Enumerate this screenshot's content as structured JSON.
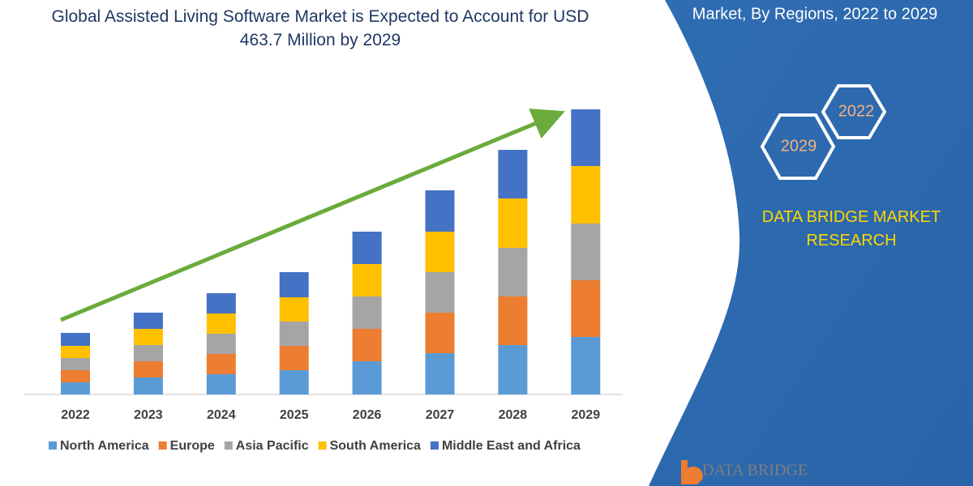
{
  "chart_data": {
    "type": "stacked-bar",
    "title": "Global Assisted Living Software Market is Expected to Account for USD 463.7 Million by 2029",
    "categories": [
      "2022",
      "2023",
      "2024",
      "2025",
      "2026",
      "2027",
      "2028",
      "2029"
    ],
    "series": [
      {
        "name": "North America",
        "color": "#5b9bd5",
        "values": [
          15,
          21,
          25,
          30,
          41,
          51,
          61,
          71
        ]
      },
      {
        "name": "Europe",
        "color": "#ed7d31",
        "values": [
          15,
          20,
          25,
          30,
          40,
          50,
          60,
          70
        ]
      },
      {
        "name": "Asia Pacific",
        "color": "#a5a5a5",
        "values": [
          15,
          20,
          25,
          30,
          40,
          50,
          60,
          70
        ]
      },
      {
        "name": "South America",
        "color": "#ffc000",
        "values": [
          15,
          20,
          25,
          30,
          40,
          50,
          61,
          71
        ]
      },
      {
        "name": "Middle East and Africa",
        "color": "#4472c4",
        "values": [
          16,
          20,
          25,
          31,
          40,
          51,
          60,
          70
        ]
      }
    ]
  },
  "panel": {
    "heading": "Market, By Regions, 2022 to 2029",
    "hex_labels": [
      "2022",
      "2029"
    ],
    "brand": "DATA BRIDGE MARKET RESEARCH"
  },
  "logo": "DATA BRIDGE"
}
